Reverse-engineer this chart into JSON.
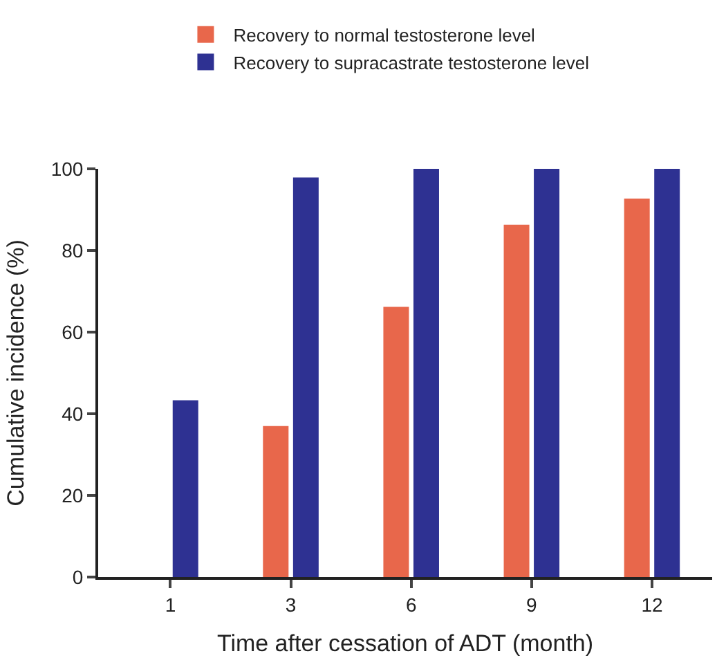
{
  "chart_data": {
    "type": "bar",
    "xlabel": "Time after cessation of ADT (month)",
    "ylabel": "Cumulative incidence (%)",
    "categories": [
      "1",
      "3",
      "6",
      "9",
      "12"
    ],
    "series": [
      {
        "name": "Recovery to normal testosterone level",
        "color": "#e8674b",
        "values": [
          0,
          37,
          66.2,
          86.3,
          92.7
        ]
      },
      {
        "name": "Recovery to supracastrate testosterone level",
        "color": "#2e3192",
        "values": [
          43.3,
          97.9,
          100,
          100,
          100
        ]
      }
    ],
    "ylim": [
      0,
      100
    ],
    "yticks": [
      0,
      20,
      40,
      60,
      80,
      100
    ],
    "legend": "top"
  }
}
